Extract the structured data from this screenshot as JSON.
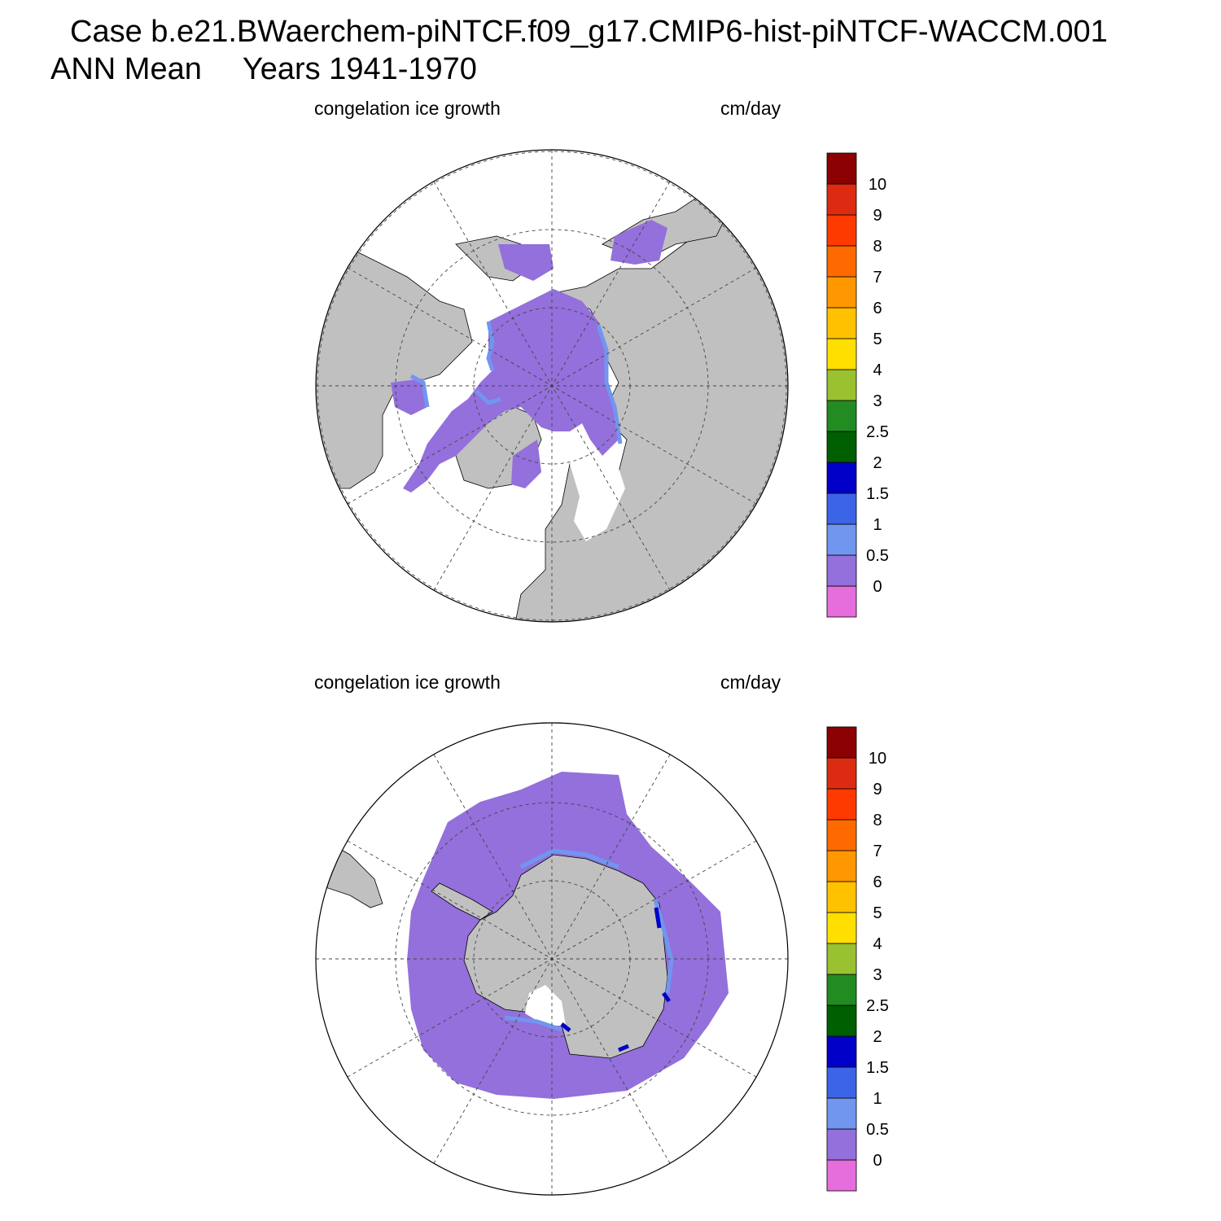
{
  "title": {
    "line1": "Case b.e21.BWaerchem-piNTCF.f09_g17.CMIP6-hist-piNTCF-WACCM.001",
    "season": "ANN Mean",
    "years": "Years 1941-1970"
  },
  "panels": [
    {
      "hemisphere": "north",
      "variable": "congelation ice growth",
      "units": "cm/day",
      "map_projection": "polar stereographic, north pole",
      "dominant_value_range": "0-0.5",
      "coastal_value_range": "0.5-1"
    },
    {
      "hemisphere": "south",
      "variable": "congelation ice growth",
      "units": "cm/day",
      "map_projection": "polar stereographic, south pole",
      "dominant_value_range": "0-0.5",
      "coastal_value_range": "0.5-2"
    }
  ],
  "colorbar": {
    "labels": [
      "0",
      "0.5",
      "1",
      "1.5",
      "2",
      "2.5",
      "3",
      "4",
      "5",
      "6",
      "7",
      "8",
      "9",
      "10"
    ],
    "colors": [
      "#e66ddc",
      "#9370db",
      "#7096f0",
      "#3c64e6",
      "#0000c8",
      "#005f00",
      "#228b22",
      "#99c130",
      "#ffdf00",
      "#ffc100",
      "#ff9800",
      "#ff6a00",
      "#ff3a00",
      "#dd2b11",
      "#8b0000"
    ]
  },
  "colors": {
    "land": "#c0c0c0",
    "ocean_no_ice": "#ffffff",
    "grid": "#555555"
  }
}
